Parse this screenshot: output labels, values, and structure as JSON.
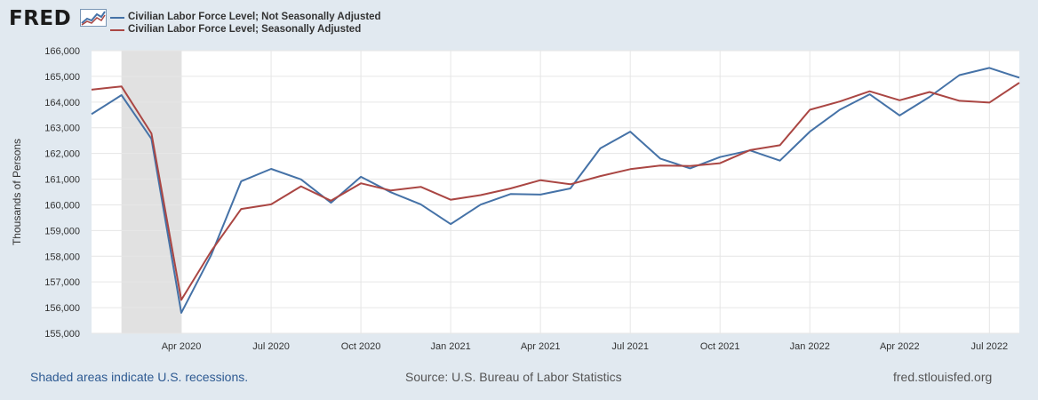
{
  "logo": {
    "brand": "FRED"
  },
  "legend": [
    {
      "name": "Civilian Labor Force Level; Not Seasonally Adjusted",
      "color": "#4572a7"
    },
    {
      "name": "Civilian Labor Force Level; Seasonally Adjusted",
      "color": "#aa4643"
    }
  ],
  "footer": {
    "left": "Shaded areas indicate U.S. recessions.",
    "center": "Source: U.S. Bureau of Labor Statistics",
    "right": "fred.stlouisfed.org"
  },
  "chart_data": {
    "type": "line",
    "title": "",
    "xlabel": "",
    "ylabel": "Thousands of Persons",
    "ylim": [
      155000,
      166000
    ],
    "ytick_labels": [
      "155,000",
      "156,000",
      "157,000",
      "158,000",
      "159,000",
      "160,000",
      "161,000",
      "162,000",
      "163,000",
      "164,000",
      "165,000",
      "166,000"
    ],
    "x": [
      "2020-01",
      "2020-02",
      "2020-03",
      "2020-04",
      "2020-05",
      "2020-06",
      "2020-07",
      "2020-08",
      "2020-09",
      "2020-10",
      "2020-11",
      "2020-12",
      "2021-01",
      "2021-02",
      "2021-03",
      "2021-04",
      "2021-05",
      "2021-06",
      "2021-07",
      "2021-08",
      "2021-09",
      "2021-10",
      "2021-11",
      "2021-12",
      "2022-01",
      "2022-02",
      "2022-03",
      "2022-04",
      "2022-05",
      "2022-06",
      "2022-07",
      "2022-08"
    ],
    "xtick_labels": [
      {
        "label": "Apr 2020",
        "index": 3
      },
      {
        "label": "Jul 2020",
        "index": 6
      },
      {
        "label": "Oct 2020",
        "index": 9
      },
      {
        "label": "Jan 2021",
        "index": 12
      },
      {
        "label": "Apr 2021",
        "index": 15
      },
      {
        "label": "Jul 2021",
        "index": 18
      },
      {
        "label": "Oct 2021",
        "index": 21
      },
      {
        "label": "Jan 2022",
        "index": 24
      },
      {
        "label": "Apr 2022",
        "index": 27
      },
      {
        "label": "Jul 2022",
        "index": 30
      }
    ],
    "recessions": [
      {
        "start_index": 1,
        "end_index": 3
      }
    ],
    "series": [
      {
        "name": "Civilian Labor Force Level; Not Seasonally Adjusted",
        "color": "#4572a7",
        "values": [
          163530,
          164270,
          162570,
          155800,
          158050,
          160920,
          161400,
          160990,
          160080,
          161090,
          160490,
          160020,
          159250,
          160010,
          160420,
          160400,
          160640,
          162200,
          162850,
          161800,
          161420,
          161860,
          162120,
          161720,
          162850,
          163700,
          164300,
          163480,
          164200,
          165050,
          165330,
          164950
        ]
      },
      {
        "name": "Civilian Labor Force Level; Seasonally Adjusted",
        "color": "#aa4643",
        "values": [
          164480,
          164610,
          162780,
          156300,
          158200,
          159840,
          160020,
          160720,
          160160,
          160840,
          160560,
          160700,
          160200,
          160380,
          160640,
          160960,
          160800,
          161120,
          161390,
          161530,
          161510,
          161620,
          162130,
          162320,
          163700,
          164020,
          164420,
          164070,
          164390,
          164050,
          163980,
          164750
        ]
      }
    ]
  }
}
